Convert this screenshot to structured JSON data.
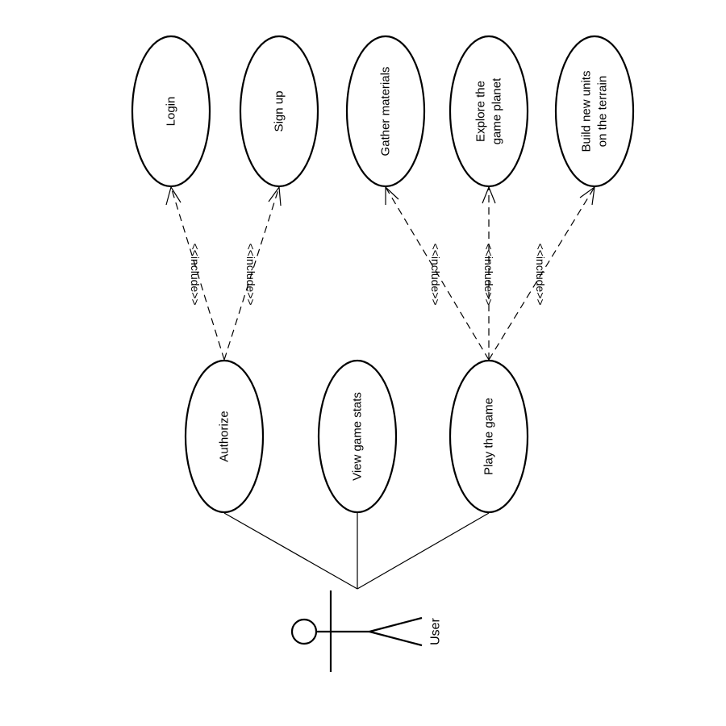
{
  "diagram": {
    "type": "UML use case diagram",
    "actor": {
      "label": "User"
    },
    "top_use_cases": [
      {
        "id": "login",
        "label_lines": [
          "Login"
        ]
      },
      {
        "id": "signup",
        "label_lines": [
          "Sign up"
        ]
      },
      {
        "id": "gather",
        "label_lines": [
          "Gather materials"
        ]
      },
      {
        "id": "explore",
        "label_lines": [
          "Explore the",
          "game planet"
        ]
      },
      {
        "id": "build",
        "label_lines": [
          "Build new units",
          "on the terrain"
        ]
      }
    ],
    "main_use_cases": [
      {
        "id": "authorize",
        "label_lines": [
          "Authorize"
        ]
      },
      {
        "id": "stats",
        "label_lines": [
          "View game stats"
        ]
      },
      {
        "id": "play",
        "label_lines": [
          "Play the game"
        ]
      }
    ],
    "include_label": "<<include>>",
    "include_relations": [
      {
        "from": "authorize",
        "to": "login"
      },
      {
        "from": "authorize",
        "to": "signup"
      },
      {
        "from": "play",
        "to": "gather"
      },
      {
        "from": "play",
        "to": "explore"
      },
      {
        "from": "play",
        "to": "build"
      }
    ],
    "associations": [
      {
        "actor": "User",
        "use_case": "authorize"
      },
      {
        "actor": "User",
        "use_case": "stats"
      },
      {
        "actor": "User",
        "use_case": "play"
      }
    ]
  }
}
